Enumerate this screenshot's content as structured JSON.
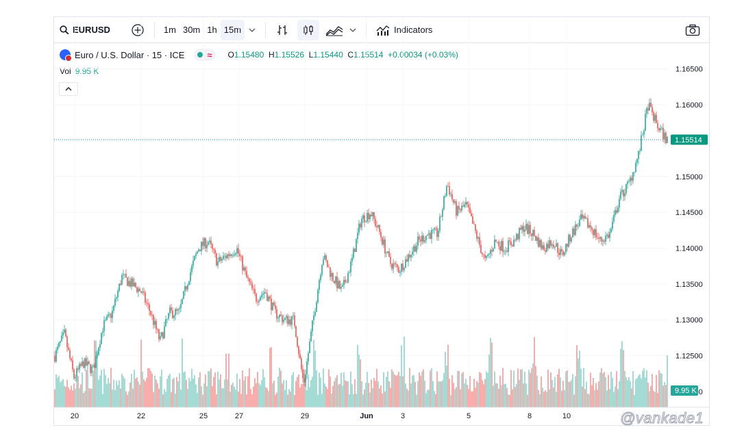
{
  "toolbar": {
    "symbol": "EURUSD",
    "intervals": [
      "1m",
      "30m",
      "1h",
      "15m"
    ],
    "active_interval": "15m",
    "indicators_label": "Indicators"
  },
  "legend": {
    "title": "Euro / U.S. Dollar · 15 · ICE",
    "open_label": "O",
    "open": "1.15480",
    "high_label": "H",
    "high": "1.15526",
    "low_label": "L",
    "low": "1.15440",
    "close_label": "C",
    "close": "1.15514",
    "change": "+0.00034 (+0.03%)"
  },
  "volume": {
    "label": "Vol",
    "value": "9.95 K"
  },
  "watermark": "@vankade1",
  "colors": {
    "up": "#26a69a",
    "down": "#ef5350",
    "accent": "#2962ff"
  },
  "chart_data": {
    "type": "candlestick",
    "y_ticks": [
      "1.16500",
      "1.16000",
      "1.15500",
      "1.15000",
      "1.14500",
      "1.14000",
      "1.13500",
      "1.13000",
      "1.12500",
      "1.12000"
    ],
    "ylim": [
      1.1165,
      1.1178
    ],
    "x_tick_labels": [
      "20",
      "22",
      "25",
      "27",
      "29",
      "Jun",
      "3",
      "5",
      "8",
      "10"
    ],
    "last_price": "1.15514",
    "last_volume": "9.95 K",
    "series": [
      {
        "values": [
          1.125,
          1.128,
          1.122,
          1.124,
          1.123,
          1.129,
          1.131,
          1.136,
          1.135,
          1.134,
          1.131,
          1.127,
          1.131,
          1.131,
          1.136,
          1.14,
          1.141,
          1.138,
          1.139,
          1.14,
          1.136,
          1.133,
          1.134,
          1.131,
          1.13,
          1.13,
          1.121,
          1.13,
          1.139,
          1.136,
          1.134,
          1.138,
          1.144,
          1.145,
          1.142,
          1.138,
          1.137,
          1.139,
          1.141,
          1.142,
          1.142,
          1.149,
          1.145,
          1.146,
          1.142,
          1.138,
          1.141,
          1.14,
          1.141,
          1.143,
          1.142,
          1.14,
          1.141,
          1.139,
          1.142,
          1.144,
          1.143,
          1.141,
          1.142,
          1.147,
          1.149,
          1.153,
          1.16,
          1.157,
          1.155
        ]
      }
    ]
  }
}
